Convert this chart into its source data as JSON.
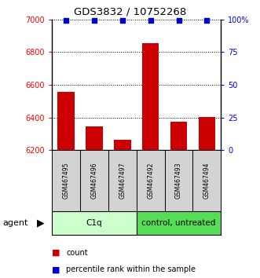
{
  "title": "GDS3832 / 10752268",
  "samples": [
    "GSM467495",
    "GSM467496",
    "GSM467497",
    "GSM467492",
    "GSM467493",
    "GSM467494"
  ],
  "counts": [
    6555,
    6345,
    6265,
    6855,
    6375,
    6405
  ],
  "percentile_ranks": [
    99,
    99,
    99,
    99,
    99,
    99
  ],
  "ylim_left": [
    6200,
    7000
  ],
  "ylim_right": [
    0,
    100
  ],
  "yticks_left": [
    6200,
    6400,
    6600,
    6800,
    7000
  ],
  "yticks_right": [
    0,
    25,
    50,
    75,
    100
  ],
  "ytick_labels_right": [
    "0",
    "25",
    "50",
    "75",
    "100%"
  ],
  "bar_color": "#cc0000",
  "dot_color": "#0000cc",
  "group1_label": "C1q",
  "group2_label": "control, untreated",
  "group1_indices": [
    0,
    1,
    2
  ],
  "group2_indices": [
    3,
    4,
    5
  ],
  "group1_color": "#ccffcc",
  "group2_color": "#55dd55",
  "agent_label": "agent",
  "legend_count_label": "count",
  "legend_percentile_label": "percentile rank within the sample",
  "bar_width": 0.6,
  "gridline_color": "#000000"
}
